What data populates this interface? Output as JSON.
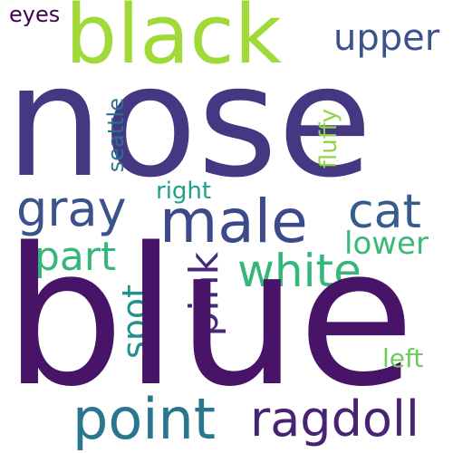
{
  "words": {
    "nose": {
      "text": "nose",
      "color": "#453781"
    },
    "blue": {
      "text": "blue",
      "color": "#481467"
    },
    "black": {
      "text": "black",
      "color": "#a0da39"
    },
    "male": {
      "text": "male",
      "color": "#3e4989"
    },
    "point": {
      "text": "point",
      "color": "#2a768e"
    },
    "ragdoll": {
      "text": "ragdoll",
      "color": "#482374"
    },
    "white": {
      "text": "white",
      "color": "#35b779"
    },
    "gray": {
      "text": "gray",
      "color": "#3b528b"
    },
    "cat": {
      "text": "cat",
      "color": "#365c8d"
    },
    "upper": {
      "text": "upper",
      "color": "#3b528b"
    },
    "pink": {
      "text": "pink",
      "color": "#482878"
    },
    "part": {
      "text": "part",
      "color": "#35b779"
    },
    "lower": {
      "text": "lower",
      "color": "#3aba76"
    },
    "spot": {
      "text": "spot",
      "color": "#21918c"
    },
    "eyes": {
      "text": "eyes",
      "color": "#440154"
    },
    "seattle": {
      "text": "seattle",
      "color": "#2c728e"
    },
    "fluffy": {
      "text": "fluffy",
      "color": "#8fd744"
    },
    "right": {
      "text": "right",
      "color": "#1fa187"
    },
    "left": {
      "text": "left",
      "color": "#6ccd5a"
    }
  }
}
